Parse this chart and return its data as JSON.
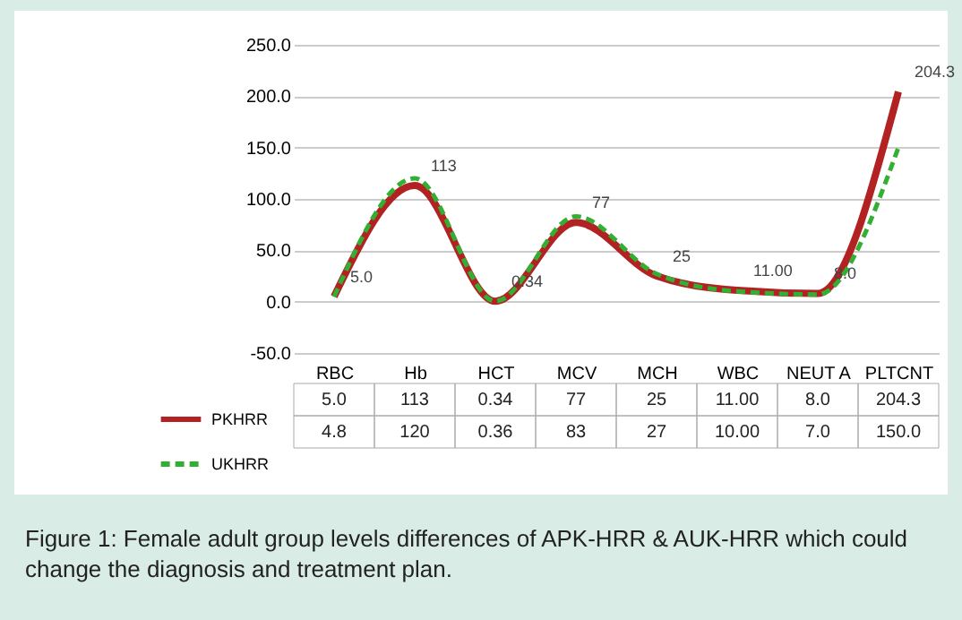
{
  "chart_data": {
    "type": "line",
    "categories": [
      "RBC",
      "Hb",
      "HCT",
      "MCV",
      "MCH",
      "WBC",
      "NEUT A",
      "PLTCNT"
    ],
    "series": [
      {
        "name": "PKHRR",
        "color": "#b22222",
        "line_style": "solid",
        "values": [
          5.0,
          113,
          0.34,
          77,
          25,
          11.0,
          8.0,
          204.3
        ],
        "value_labels": [
          "5.0",
          "113",
          "0.34",
          "77",
          "25",
          "11.00",
          "8.0",
          "204.3"
        ]
      },
      {
        "name": "UKHRR",
        "color": "#33b033",
        "line_style": "dashed",
        "values": [
          4.8,
          120,
          0.36,
          83,
          27,
          10.0,
          7.0,
          150.0
        ],
        "value_labels": [
          "4.8",
          "120",
          "0.36",
          "83",
          "27",
          "10.00",
          "7.0",
          "150.0"
        ]
      }
    ],
    "ylim": [
      -50,
      250
    ],
    "yticks": [
      {
        "value": -50,
        "label": "-50.0"
      },
      {
        "value": 0,
        "label": "0.0"
      },
      {
        "value": 50,
        "label": "50.0"
      },
      {
        "value": 100,
        "label": "100.0"
      },
      {
        "value": 150,
        "label": "150.0"
      },
      {
        "value": 200,
        "label": "200.0"
      },
      {
        "value": 250,
        "label": "250.0"
      }
    ],
    "grid": "y",
    "legend": "bottom left",
    "marker": "none",
    "annotations": [
      "Figure 1: Female adult group levels differences of APK-HRR & AUK-HRR which could change the diagnosis and treatment plan."
    ]
  }
}
